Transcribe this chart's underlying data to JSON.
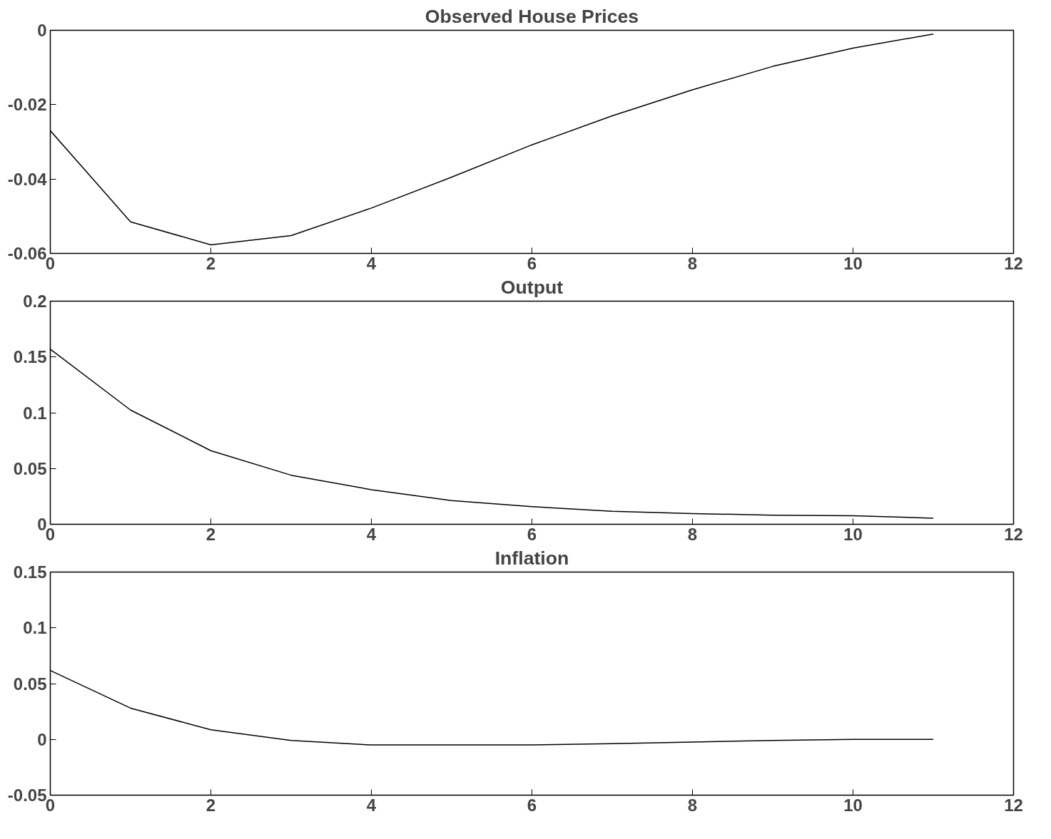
{
  "chart_data": [
    {
      "type": "line",
      "title": "Observed House Prices",
      "x": [
        0,
        1,
        2,
        3,
        4,
        5,
        6,
        7,
        8,
        9,
        10,
        11
      ],
      "series": [
        {
          "color": "#000000",
          "values": [
            -0.027,
            -0.0515,
            -0.0577,
            -0.0552,
            -0.0478,
            -0.0395,
            -0.0308,
            -0.023,
            -0.016,
            -0.0097,
            -0.0048,
            -0.001
          ]
        }
      ],
      "xlim": [
        0,
        12
      ],
      "xticks": [
        0,
        2,
        4,
        6,
        8,
        10,
        12
      ],
      "ylim": [
        -0.06,
        0
      ],
      "yticks": [
        -0.06,
        -0.04,
        -0.02,
        0
      ],
      "grid": false
    },
    {
      "type": "line",
      "title": "Output",
      "x": [
        0,
        1,
        2,
        3,
        4,
        5,
        6,
        7,
        8,
        9,
        10,
        11
      ],
      "series": [
        {
          "color": "#000000",
          "values": [
            0.157,
            0.1024,
            0.066,
            0.044,
            0.031,
            0.0213,
            0.0158,
            0.0117,
            0.0096,
            0.0082,
            0.0076,
            0.0055
          ]
        }
      ],
      "xlim": [
        0,
        12
      ],
      "xticks": [
        0,
        2,
        4,
        6,
        8,
        10,
        12
      ],
      "ylim": [
        0,
        0.2
      ],
      "yticks": [
        0,
        0.05,
        0.1,
        0.15,
        0.2
      ],
      "grid": false
    },
    {
      "type": "line",
      "title": "Inflation",
      "x": [
        0,
        1,
        2,
        3,
        4,
        5,
        6,
        7,
        8,
        9,
        10,
        11
      ],
      "series": [
        {
          "color": "#000000",
          "values": [
            0.0617,
            0.028,
            0.0086,
            -0.001,
            -0.005,
            -0.005,
            -0.005,
            -0.0038,
            -0.0024,
            -0.001,
            0,
            0
          ]
        }
      ],
      "xlim": [
        0,
        12
      ],
      "xticks": [
        0,
        2,
        4,
        6,
        8,
        10,
        12
      ],
      "ylim": [
        -0.05,
        0.15
      ],
      "yticks": [
        -0.05,
        0,
        0.05,
        0.1,
        0.15
      ],
      "grid": false
    }
  ]
}
